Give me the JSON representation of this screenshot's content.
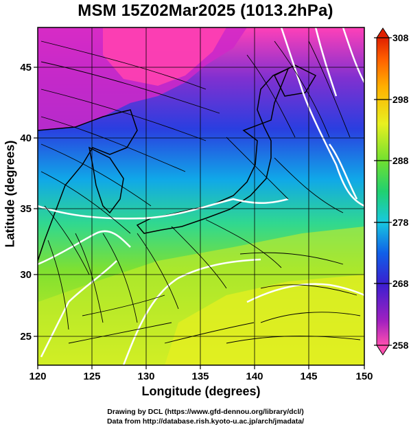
{
  "title": "MSM 15Z02Mar2025 (1013.2hPa)",
  "xlabel": "Longitude (degrees)",
  "ylabel": "Latitude  (degrees)",
  "credits": {
    "line1": "Drawing by DCL (https://www.gfd-dennou.org/library/dcl/)",
    "line2": "Data from http://database.rish.kyoto-u.ac.jp/arch/jmadata/"
  },
  "map": {
    "x_ticks": [
      "120",
      "125",
      "130",
      "135",
      "140",
      "145",
      "150"
    ],
    "y_ticks": [
      "25",
      "30",
      "35",
      "40",
      "45"
    ],
    "lon_range": [
      120,
      150
    ],
    "lat_range": [
      22.5,
      47.5
    ]
  },
  "colorbar": {
    "labels": [
      "308",
      "298",
      "288",
      "278",
      "268",
      "258"
    ],
    "range": [
      258,
      308
    ],
    "colors": [
      "#ff4fb0",
      "#a020c0",
      "#3a1fd0",
      "#1060e8",
      "#18c8e0",
      "#20d070",
      "#70e030",
      "#e8f020",
      "#ffb000",
      "#ff6000",
      "#e02000"
    ]
  }
}
